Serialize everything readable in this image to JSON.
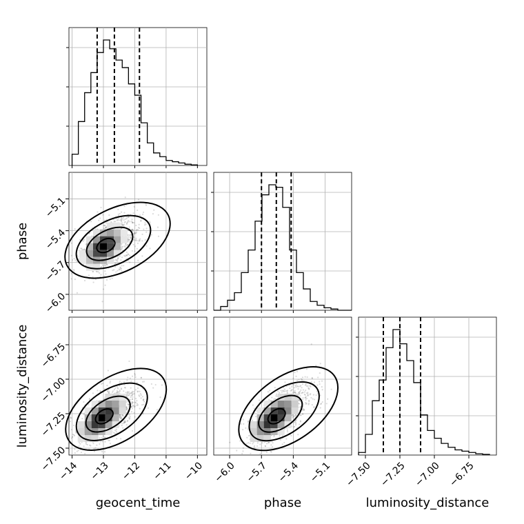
{
  "chart_data": {
    "type": "corner",
    "parameters": [
      "geocent_time",
      "phase",
      "luminosity_distance"
    ],
    "grid": true,
    "ranges": {
      "geocent_time": [
        -14.1,
        -9.7
      ],
      "phase": [
        -6.15,
        -4.85
      ],
      "luminosity_distance": [
        -7.55,
        -6.55
      ]
    },
    "ticks": {
      "geocent_time": [
        -14,
        -13,
        -12,
        -11,
        -10
      ],
      "phase": [
        -6.0,
        -5.7,
        -5.4,
        -5.1
      ],
      "luminosity_distance": [
        -7.5,
        -7.25,
        -7.0,
        -6.75
      ]
    },
    "tick_labels": {
      "geocent_time": [
        "−14",
        "−13",
        "−12",
        "−11",
        "−10"
      ],
      "phase": [
        "−6.0",
        "−5.7",
        "−5.4",
        "−5.1"
      ],
      "luminosity_distance": [
        "−7.50",
        "−7.25",
        "−7.00",
        "−6.75"
      ]
    },
    "histograms": [
      {
        "parameter": "geocent_time",
        "bin_edges": [
          -14.0,
          -13.8,
          -13.6,
          -13.4,
          -13.2,
          -13.0,
          -12.8,
          -12.6,
          -12.4,
          -12.2,
          -12.0,
          -11.8,
          -11.6,
          -11.4,
          -11.2,
          -11.0,
          -10.8,
          -10.6,
          -10.4,
          -10.2,
          -10.0
        ],
        "counts": [
          0.09,
          0.35,
          0.58,
          0.74,
          0.9,
          1.0,
          0.93,
          0.84,
          0.78,
          0.65,
          0.56,
          0.34,
          0.18,
          0.1,
          0.07,
          0.04,
          0.03,
          0.02,
          0.01,
          0.005
        ],
        "quantiles": [
          -13.2,
          -12.65,
          -11.85
        ]
      },
      {
        "parameter": "phase",
        "bin_edges": [
          -6.15,
          -6.085,
          -6.02,
          -5.955,
          -5.89,
          -5.825,
          -5.76,
          -5.695,
          -5.63,
          -5.565,
          -5.5,
          -5.435,
          -5.37,
          -5.305,
          -5.24,
          -5.175,
          -5.11,
          -5.045,
          -4.98,
          -4.915,
          -4.85
        ],
        "counts": [
          0.0,
          0.03,
          0.08,
          0.14,
          0.3,
          0.48,
          0.71,
          0.92,
          1.0,
          0.98,
          0.82,
          0.48,
          0.3,
          0.17,
          0.07,
          0.04,
          0.02,
          0.01,
          0.0,
          0.0
        ],
        "quantiles": [
          -5.7,
          -5.56,
          -5.42
        ]
      },
      {
        "parameter": "luminosity_distance",
        "bin_edges": [
          -7.55,
          -7.5,
          -7.45,
          -7.4,
          -7.35,
          -7.3,
          -7.25,
          -7.2,
          -7.15,
          -7.1,
          -7.05,
          -7.0,
          -6.95,
          -6.9,
          -6.85,
          -6.8,
          -6.75,
          -6.7,
          -6.65,
          -6.6
        ],
        "counts": [
          0.02,
          0.16,
          0.42,
          0.58,
          0.83,
          0.97,
          0.86,
          0.73,
          0.56,
          0.31,
          0.19,
          0.13,
          0.09,
          0.06,
          0.04,
          0.03,
          0.02,
          0.01,
          0.005
        ],
        "quantiles": [
          -7.37,
          -7.25,
          -7.1
        ]
      }
    ],
    "pairs": [
      {
        "x": "geocent_time",
        "y": "phase",
        "peak": [
          -13.0,
          -5.55
        ],
        "correlation": 0.45,
        "contour_levels": [
          0.12,
          0.39,
          0.68,
          0.86
        ]
      },
      {
        "x": "geocent_time",
        "y": "luminosity_distance",
        "peak": [
          -13.05,
          -7.28
        ],
        "correlation": 0.6,
        "contour_levels": [
          0.12,
          0.39,
          0.68,
          0.86
        ]
      },
      {
        "x": "phase",
        "y": "luminosity_distance",
        "peak": [
          -5.58,
          -7.28
        ],
        "correlation": 0.65,
        "contour_levels": [
          0.12,
          0.39,
          0.68,
          0.86
        ]
      }
    ],
    "xlabels": [
      "geocent_time",
      "phase",
      "luminosity_distance"
    ],
    "ylabels": [
      "",
      "phase",
      "luminosity_distance"
    ]
  }
}
